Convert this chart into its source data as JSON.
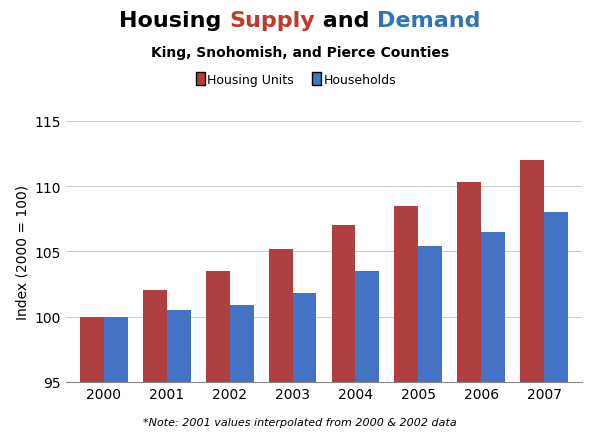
{
  "years": [
    2000,
    2001,
    2002,
    2003,
    2004,
    2005,
    2006,
    2007
  ],
  "housing_units": [
    100.0,
    102.0,
    103.5,
    105.2,
    107.0,
    108.5,
    110.3,
    112.0
  ],
  "households": [
    100.0,
    100.5,
    100.9,
    101.8,
    103.5,
    105.4,
    106.5,
    108.0
  ],
  "housing_units_color": "#B04040",
  "households_color": "#4472C4",
  "title_parts": [
    [
      "Housing ",
      "black"
    ],
    [
      "Supply",
      "#C0392B"
    ],
    [
      " and ",
      "black"
    ],
    [
      "Demand",
      "#2E75B6"
    ]
  ],
  "subtitle": "King, Snohomish, and Pierce Counties",
  "ylabel": "Index (2000 = 100)",
  "ylim_min": 95,
  "ylim_max": 115,
  "yticks": [
    95,
    100,
    105,
    110,
    115
  ],
  "legend_label_red": "Housing Units",
  "legend_label_blue": "Households",
  "footnote": "*Note: 2001 values interpolated from 2000 & 2002 data",
  "title_fontsize": 16,
  "subtitle_fontsize": 10,
  "legend_fontsize": 9,
  "bar_width": 0.38,
  "background_color": "#FFFFFF",
  "grid_color": "#CCCCCC"
}
